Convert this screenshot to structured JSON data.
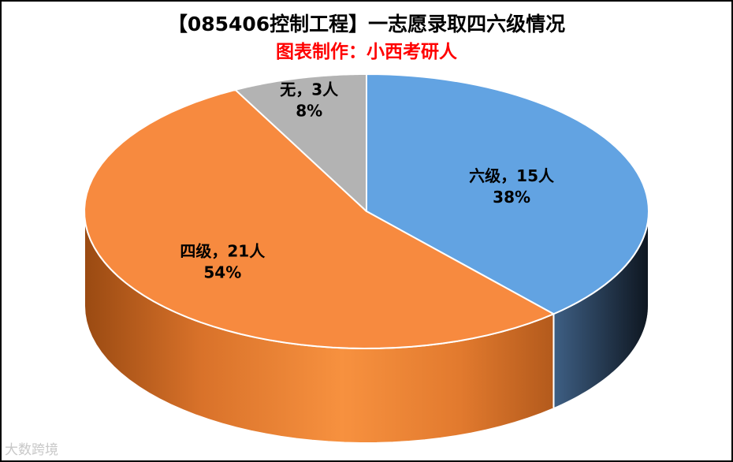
{
  "title": "【085406控制工程】一志愿录取四六级情况",
  "subtitle": "图表制作：小西考研人",
  "watermark": "大数跨境",
  "chart_data": {
    "type": "pie",
    "title": "【085406控制工程】一志愿录取四六级情况",
    "subtitle": "图表制作：小西考研人",
    "three_d": true,
    "slices": [
      {
        "name": "六级",
        "value": 15,
        "percent": 38,
        "label": "六级，15人",
        "pct_label": "38%",
        "color": "#62A3E2",
        "side_color": "#34506E"
      },
      {
        "name": "四级",
        "value": 21,
        "percent": 54,
        "label": "四级，21人",
        "pct_label": "54%",
        "color": "#F78A3F",
        "side_color": "#C8651C"
      },
      {
        "name": "无",
        "value": 3,
        "percent": 8,
        "label": "无，3人",
        "pct_label": "8%",
        "color": "#B3B3B3",
        "side_color": "#7A7A7A"
      }
    ],
    "legend": "none"
  }
}
